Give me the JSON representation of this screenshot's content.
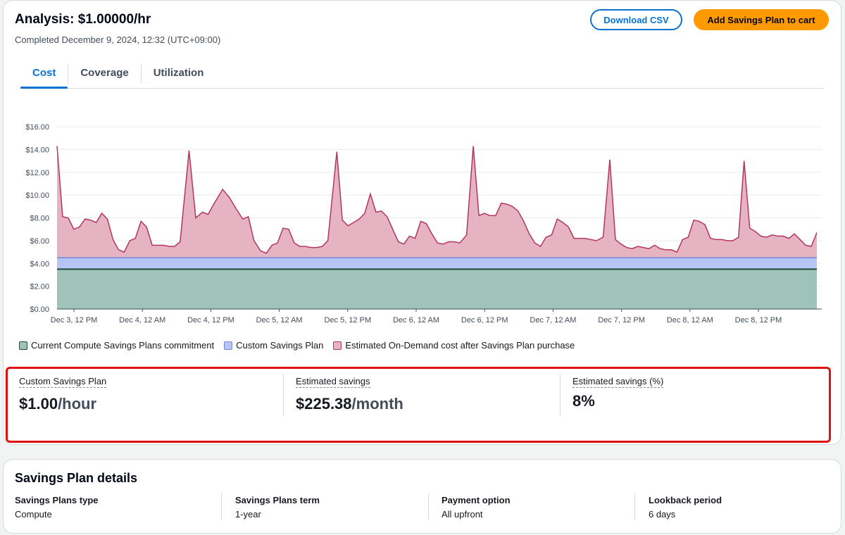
{
  "header": {
    "title": "Analysis: $1.00000/hr",
    "completed": "Completed December 9, 2024, 12:32 (UTC+09:00)",
    "download_label": "Download CSV",
    "add_cart_label": "Add Savings Plan to cart"
  },
  "tabs": [
    {
      "label": "Cost",
      "active": true
    },
    {
      "label": "Coverage",
      "active": false
    },
    {
      "label": "Utilization",
      "active": false
    }
  ],
  "chart_data": {
    "type": "area",
    "y_ticks": [
      "$16.00",
      "$14.00",
      "$12.00",
      "$10.00",
      "$8.00",
      "$6.00",
      "$4.00",
      "$2.00",
      "$0.00"
    ],
    "ylim": [
      0,
      16
    ],
    "x_ticks": [
      "Dec 3, 12 PM",
      "Dec 4, 12 AM",
      "Dec 4, 12 PM",
      "Dec 5, 12 AM",
      "Dec 5, 12 PM",
      "Dec 6, 12 AM",
      "Dec 6, 12 PM",
      "Dec 7, 12 AM",
      "Dec 7, 12 PM",
      "Dec 8, 12 AM",
      "Dec 8, 12 PM"
    ],
    "commitment": 3.5,
    "custom_plan_top": 4.5,
    "series": [
      {
        "name": "Current Compute Savings Plans commitment",
        "color": "#9fc3b8",
        "line": "#1d4a40"
      },
      {
        "name": "Custom Savings Plan",
        "color": "#b7c5f5",
        "line": "#6f86d6"
      },
      {
        "name": "Estimated On-Demand cost after Savings Plan purchase",
        "color": "#e5b3c2",
        "line": "#b2365f"
      }
    ],
    "on_demand_points": [
      [
        0,
        14.3
      ],
      [
        0.25,
        8.1
      ],
      [
        0.5,
        8.0
      ],
      [
        0.75,
        7.0
      ],
      [
        1,
        7.2
      ],
      [
        1.25,
        7.9
      ],
      [
        1.5,
        7.8
      ],
      [
        1.75,
        7.6
      ],
      [
        2,
        8.4
      ],
      [
        2.25,
        7.9
      ],
      [
        2.5,
        6.1
      ],
      [
        2.75,
        5.2
      ],
      [
        3,
        5.0
      ],
      [
        3.25,
        6.0
      ],
      [
        3.5,
        6.2
      ],
      [
        3.75,
        7.7
      ],
      [
        4,
        7.2
      ],
      [
        4.25,
        5.6
      ],
      [
        4.5,
        5.6
      ],
      [
        4.75,
        5.6
      ],
      [
        5,
        5.5
      ],
      [
        5.25,
        5.5
      ],
      [
        5.5,
        5.9
      ],
      [
        5.9,
        13.9
      ],
      [
        6.2,
        8.0
      ],
      [
        6.5,
        8.5
      ],
      [
        6.75,
        8.3
      ],
      [
        7,
        9.2
      ],
      [
        7.4,
        10.5
      ],
      [
        7.7,
        9.8
      ],
      [
        8,
        8.8
      ],
      [
        8.3,
        7.9
      ],
      [
        8.55,
        8.1
      ],
      [
        8.8,
        6.0
      ],
      [
        9.1,
        5.1
      ],
      [
        9.35,
        4.9
      ],
      [
        9.6,
        5.6
      ],
      [
        9.85,
        5.8
      ],
      [
        10.1,
        7.1
      ],
      [
        10.35,
        7.0
      ],
      [
        10.6,
        5.8
      ],
      [
        10.85,
        5.5
      ],
      [
        11.1,
        5.5
      ],
      [
        11.35,
        5.4
      ],
      [
        11.6,
        5.4
      ],
      [
        11.85,
        5.5
      ],
      [
        12.1,
        6.0
      ],
      [
        12.5,
        13.8
      ],
      [
        12.75,
        7.8
      ],
      [
        13,
        7.3
      ],
      [
        13.25,
        7.6
      ],
      [
        13.5,
        7.9
      ],
      [
        13.75,
        8.4
      ],
      [
        14,
        10.1
      ],
      [
        14.25,
        8.5
      ],
      [
        14.5,
        8.6
      ],
      [
        14.75,
        8.1
      ],
      [
        15,
        7.0
      ],
      [
        15.25,
        5.9
      ],
      [
        15.5,
        5.7
      ],
      [
        15.75,
        6.4
      ],
      [
        16,
        6.2
      ],
      [
        16.25,
        7.7
      ],
      [
        16.5,
        7.5
      ],
      [
        16.75,
        6.6
      ],
      [
        17,
        5.8
      ],
      [
        17.25,
        5.7
      ],
      [
        17.5,
        5.9
      ],
      [
        17.75,
        5.9
      ],
      [
        18,
        5.8
      ],
      [
        18.3,
        6.5
      ],
      [
        18.6,
        14.3
      ],
      [
        18.85,
        8.2
      ],
      [
        19.1,
        8.4
      ],
      [
        19.35,
        8.2
      ],
      [
        19.6,
        8.2
      ],
      [
        19.85,
        9.3
      ],
      [
        20.1,
        9.2
      ],
      [
        20.35,
        9.0
      ],
      [
        20.6,
        8.6
      ],
      [
        20.85,
        7.7
      ],
      [
        21.1,
        6.6
      ],
      [
        21.35,
        5.8
      ],
      [
        21.6,
        5.5
      ],
      [
        21.85,
        6.3
      ],
      [
        22.1,
        6.5
      ],
      [
        22.35,
        7.9
      ],
      [
        22.6,
        7.6
      ],
      [
        22.85,
        7.2
      ],
      [
        23.1,
        6.2
      ],
      [
        23.35,
        6.2
      ],
      [
        23.6,
        6.2
      ],
      [
        23.85,
        6.1
      ],
      [
        24.1,
        6.0
      ],
      [
        24.4,
        6.3
      ],
      [
        24.7,
        13.1
      ],
      [
        24.95,
        6.1
      ],
      [
        25.2,
        5.7
      ],
      [
        25.45,
        5.4
      ],
      [
        25.7,
        5.3
      ],
      [
        25.95,
        5.5
      ],
      [
        26.2,
        5.4
      ],
      [
        26.45,
        5.3
      ],
      [
        26.7,
        5.6
      ],
      [
        26.95,
        5.3
      ],
      [
        27.2,
        5.2
      ],
      [
        27.45,
        5.2
      ],
      [
        27.7,
        5.0
      ],
      [
        27.95,
        6.1
      ],
      [
        28.2,
        6.3
      ],
      [
        28.45,
        7.8
      ],
      [
        28.7,
        7.7
      ],
      [
        28.95,
        7.4
      ],
      [
        29.2,
        6.2
      ],
      [
        29.45,
        6.1
      ],
      [
        29.7,
        6.1
      ],
      [
        29.95,
        6.0
      ],
      [
        30.2,
        6.0
      ],
      [
        30.45,
        6.3
      ],
      [
        30.7,
        13.0
      ],
      [
        30.95,
        7.1
      ],
      [
        31.2,
        6.8
      ],
      [
        31.45,
        6.4
      ],
      [
        31.7,
        6.3
      ],
      [
        31.95,
        6.5
      ],
      [
        32.2,
        6.4
      ],
      [
        32.45,
        6.4
      ],
      [
        32.7,
        6.2
      ],
      [
        32.95,
        6.6
      ],
      [
        33.2,
        6.1
      ],
      [
        33.45,
        5.6
      ],
      [
        33.7,
        5.5
      ],
      [
        33.95,
        6.7
      ]
    ]
  },
  "metrics": [
    {
      "label": "Custom Savings Plan",
      "value": "$1.00",
      "unit": "/hour"
    },
    {
      "label": "Estimated savings",
      "value": "$225.38",
      "unit": "/month"
    },
    {
      "label": "Estimated savings (%)",
      "value": "8%",
      "unit": ""
    }
  ],
  "details": {
    "title": "Savings Plan details",
    "items": [
      {
        "label": "Savings Plans type",
        "value": "Compute"
      },
      {
        "label": "Savings Plans term",
        "value": "1-year"
      },
      {
        "label": "Payment option",
        "value": "All upfront"
      },
      {
        "label": "Lookback period",
        "value": "6 days"
      }
    ]
  }
}
